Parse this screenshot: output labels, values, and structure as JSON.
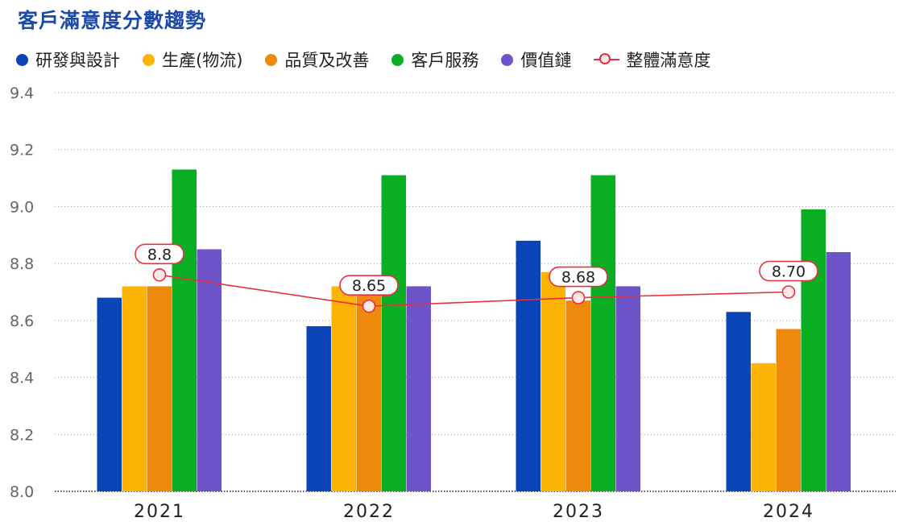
{
  "title": "客戶滿意度分數趨勢",
  "colors": {
    "title": "#1b4aa8",
    "line": "#e8303c",
    "marker_fill": "#fde8e8",
    "grid": "#999999",
    "axis_text": "#666666"
  },
  "chart_data": {
    "type": "bar",
    "categories": [
      "2021",
      "2022",
      "2023",
      "2024"
    ],
    "ylim": [
      8.0,
      9.4
    ],
    "yticks": [
      "8.0",
      "8.2",
      "8.4",
      "8.6",
      "8.8",
      "9.0",
      "9.2",
      "9.4"
    ],
    "grid": true,
    "legend_position": "top-left",
    "series": [
      {
        "name": "研發與設計",
        "color": "#0a45b8",
        "values": [
          8.68,
          8.58,
          8.88,
          8.63
        ]
      },
      {
        "name": "生產(物流)",
        "color": "#fbb404",
        "values": [
          8.72,
          8.72,
          8.77,
          8.45
        ]
      },
      {
        "name": "品質及改善",
        "color": "#ee8a0b",
        "values": [
          8.72,
          8.72,
          8.67,
          8.57
        ]
      },
      {
        "name": "客戶服務",
        "color": "#0aae23",
        "values": [
          9.13,
          9.11,
          9.11,
          8.99
        ]
      },
      {
        "name": "價值鏈",
        "color": "#6d55c9",
        "values": [
          8.85,
          8.72,
          8.72,
          8.84
        ]
      }
    ],
    "line_series": {
      "name": "整體滿意度",
      "type": "line",
      "values": [
        8.76,
        8.65,
        8.68,
        8.7
      ],
      "data_labels": [
        "8.8",
        "8.65",
        "8.68",
        "8.70"
      ]
    }
  }
}
